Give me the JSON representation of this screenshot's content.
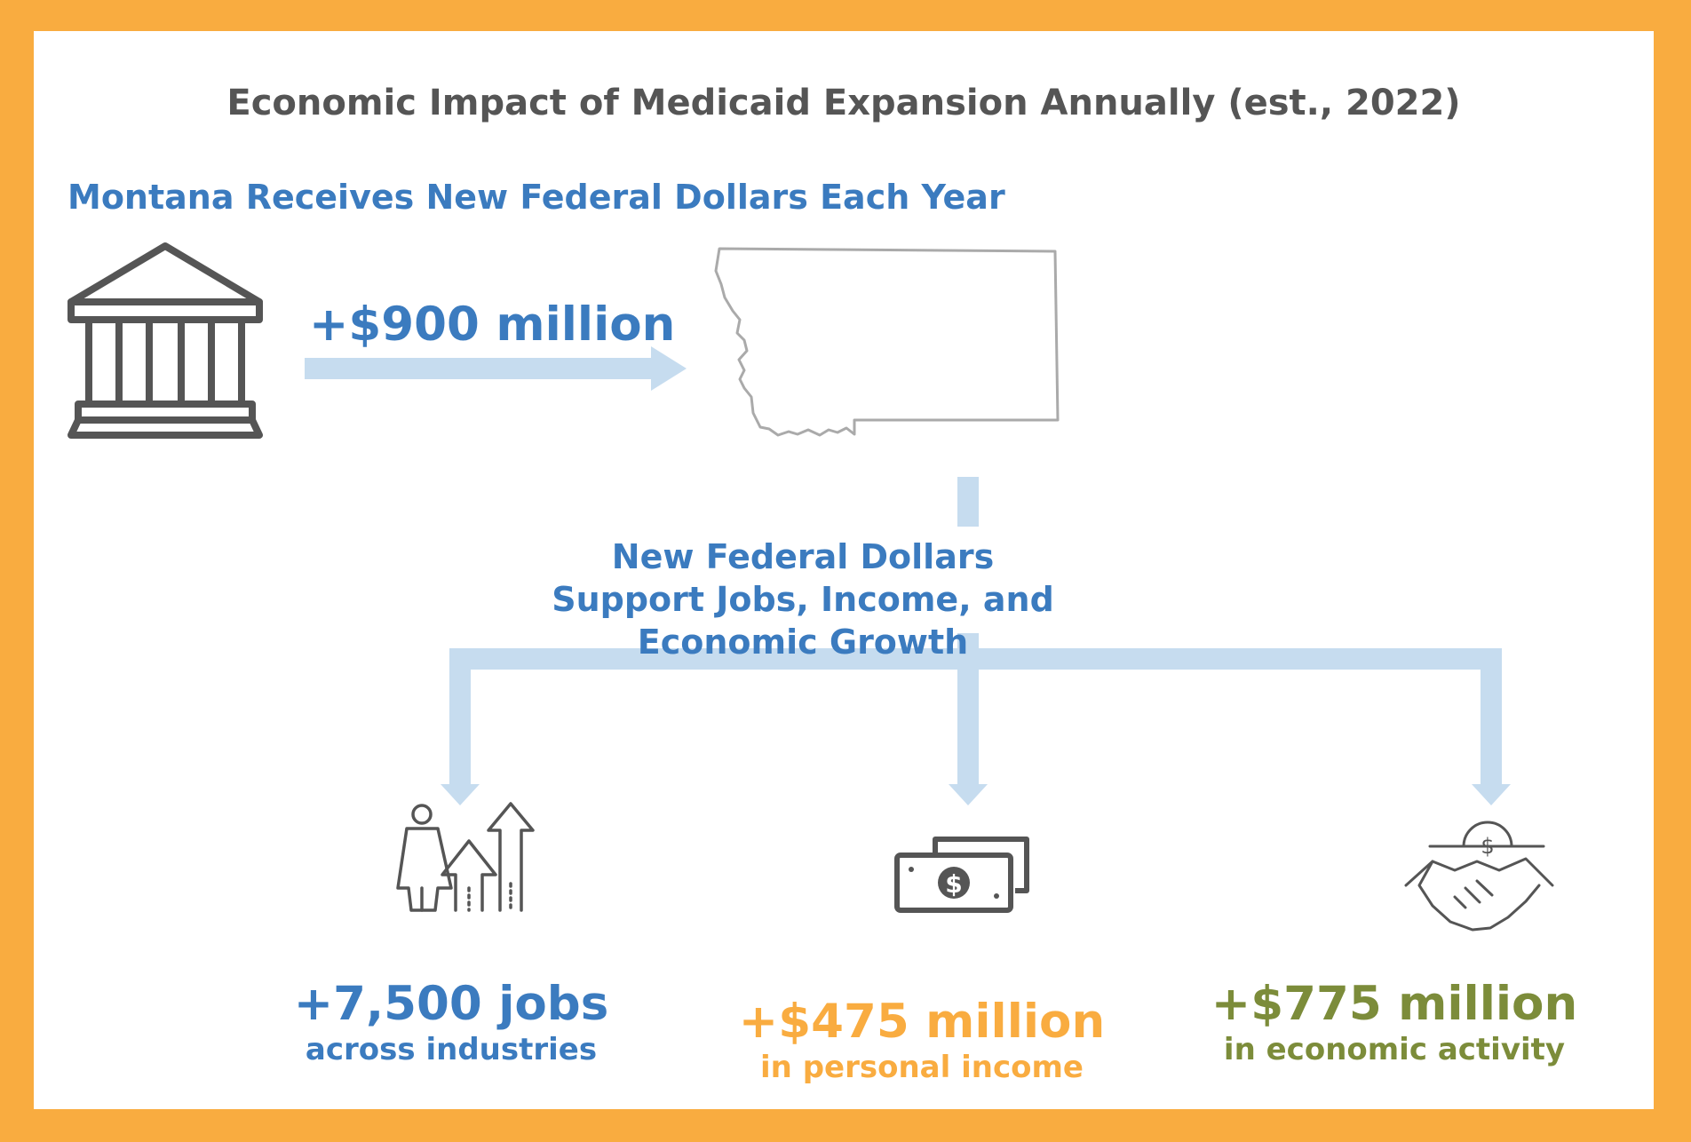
{
  "title": "Economic Impact of Medicaid Expansion Annually (est., 2022)",
  "subtitle": "Montana Receives New Federal Dollars Each Year",
  "federal_amount": "+$900 million",
  "growth_heading": "New Federal Dollars Support Jobs, Income, and Economic Growth",
  "outcomes": [
    {
      "value": "+7,500 jobs",
      "caption": "across industries",
      "icon": "jobs-growth-icon",
      "color": "#3B7BBF"
    },
    {
      "value": "+$475 million",
      "caption": "in personal income",
      "icon": "cash-icon",
      "color": "#F9AC40"
    },
    {
      "value": "+$775 million",
      "caption": "in economic activity",
      "icon": "handshake-icon",
      "color": "#7C8C3A"
    }
  ],
  "icons": {
    "origin": "government-building-icon",
    "destination": "montana-map-icon"
  },
  "colors": {
    "frame": "#F9AC40",
    "heading_blue": "#3B7BBF",
    "arrow": "#C6DCEF",
    "icon_gray": "#555555"
  }
}
